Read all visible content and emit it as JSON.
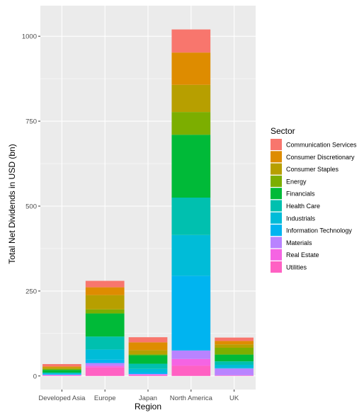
{
  "chart_data": {
    "type": "bar",
    "stacked": true,
    "xlabel": "Region",
    "ylabel": "Total Net Dividends in USD (bn)",
    "ylim": [
      -40,
      1090
    ],
    "yticks": [
      0,
      250,
      500,
      750,
      1000
    ],
    "grid": true,
    "background": "#ebebeb",
    "legend_position": "right",
    "legend_title": "Sector",
    "categories": [
      "Developed Asia",
      "Europe",
      "Japan",
      "North America",
      "UK"
    ],
    "series": [
      {
        "name": "Utilities",
        "color": "#FF61C3",
        "values": [
          1,
          25,
          2,
          30,
          1
        ]
      },
      {
        "name": "Real Estate",
        "color": "#F564E3",
        "values": [
          1,
          5,
          2,
          20,
          1
        ]
      },
      {
        "name": "Materials",
        "color": "#B983FF",
        "values": [
          2,
          8,
          2,
          25,
          20
        ]
      },
      {
        "name": "Information Technology",
        "color": "#00B4F0",
        "values": [
          2,
          10,
          5,
          220,
          1
        ]
      },
      {
        "name": "Industrials",
        "color": "#00BCD8",
        "values": [
          2,
          30,
          10,
          120,
          10
        ]
      },
      {
        "name": "Health Care",
        "color": "#00C0AF",
        "values": [
          2,
          38,
          15,
          110,
          10
        ]
      },
      {
        "name": "Financials",
        "color": "#00BA38",
        "values": [
          8,
          68,
          25,
          185,
          20
        ]
      },
      {
        "name": "Energy",
        "color": "#7CAE00",
        "values": [
          3,
          12,
          3,
          67,
          20
        ]
      },
      {
        "name": "Consumer Staples",
        "color": "#B79F00",
        "values": [
          4,
          42,
          12,
          80,
          10
        ]
      },
      {
        "name": "Consumer Discretionary",
        "color": "#DE8C00",
        "values": [
          3,
          23,
          23,
          95,
          10
        ]
      },
      {
        "name": "Communication Services",
        "color": "#F8766D",
        "values": [
          7,
          19,
          15,
          68,
          10
        ]
      }
    ]
  }
}
